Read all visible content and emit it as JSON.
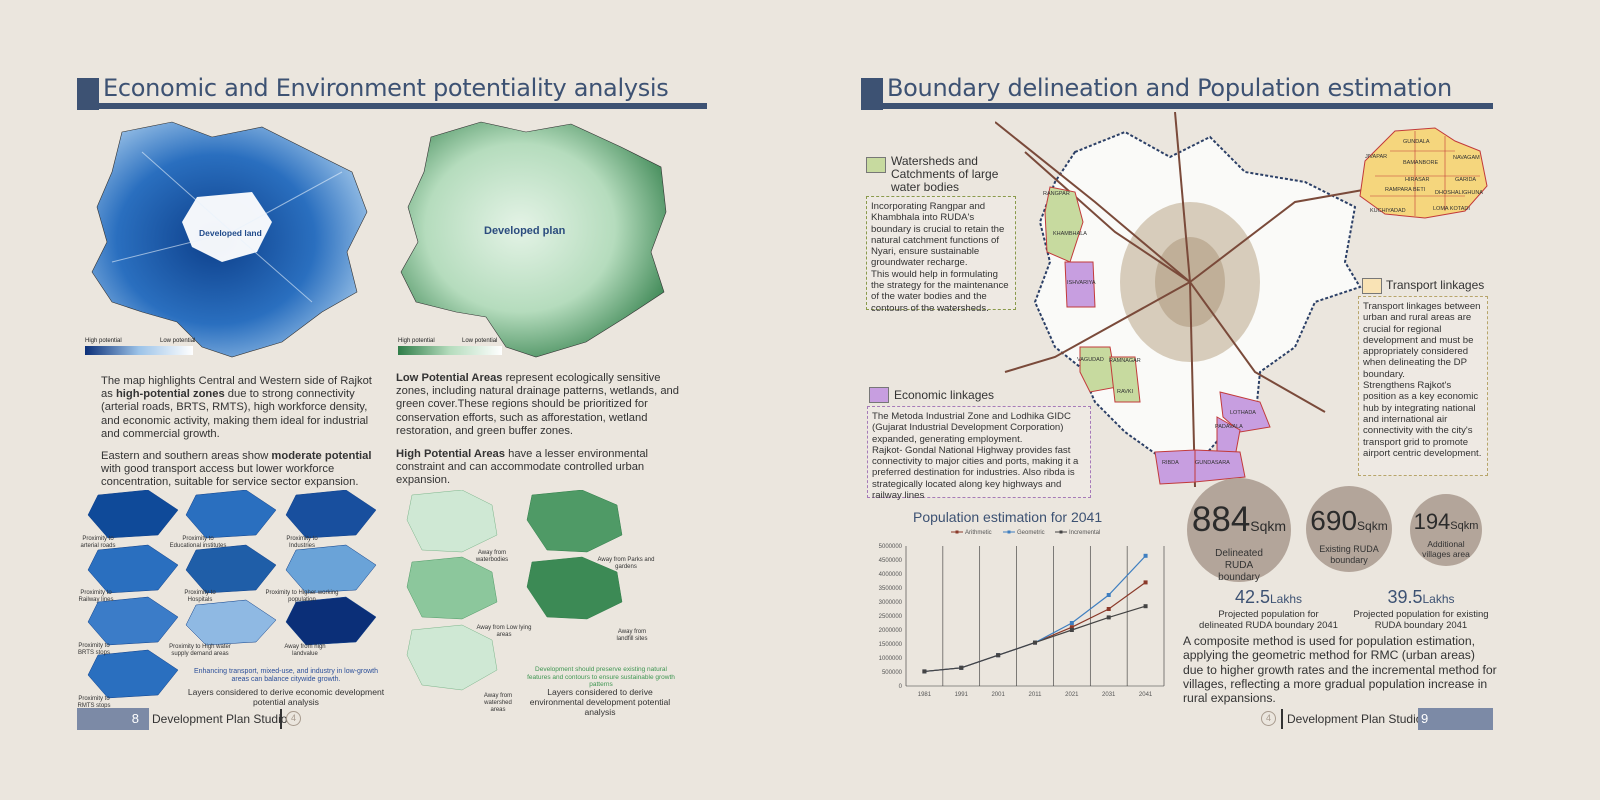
{
  "left_page": {
    "title": "Economic and Environment potentiality analysis",
    "map1_label": "Developed land",
    "map1_legend": {
      "high": "High potential",
      "low": "Low potential"
    },
    "map2_label": "Developed plan",
    "map2_legend": {
      "high": "High potential",
      "low": "Low potential"
    },
    "para1_pre": "The map highlights Central and Western side of  Rajkot as ",
    "para1_bold": "high-potential zones",
    "para1_post": " due to strong connectivity (arterial roads, BRTS, RMTS), high workforce density, and economic activity, making them ideal for industrial and commercial growth.",
    "para2_pre": "Eastern and southern areas show ",
    "para2_bold": "moderate potential",
    "para2_post": " with good transport access but lower workforce concentration, suitable for service sector expansion.",
    "para3_bold": "Low Potential Areas",
    "para3_post": " represent ecologically sensitive zones, including natural drainage patterns, wetlands, and green cover.These regions should be prioritized for conservation efforts, such as afforestation, wetland restoration, and green buffer zones.",
    "para4_bold": "High Potential Areas",
    "para4_post": " have a lesser environmental constraint and can accommodate controlled urban expansion.",
    "econ_layers": [
      "Proximity to arterial roads",
      "Proximity to Educational institutes",
      "Proximity to Industries",
      "Proximity to Railway lines",
      "Proximity to Hospitals",
      "Proximity to Higher working population",
      "Proximity to BRTS stops",
      "Proximity to High water supply demand areas",
      "Away from high landvalue",
      "Proximity to RMTS stops"
    ],
    "econ_note": "Enhancing transport, mixed-use, and industry in low-growth areas can balance citywide growth.",
    "econ_caption": "Layers considered to derive economic development potential analysis",
    "env_layers": [
      "Away from waterbodies",
      "Away from Parks and gardens",
      "Away from Low lying areas",
      "Away from landfill sites",
      "Away from watershed areas"
    ],
    "env_note": "Development should preserve existing natural features and contours to ensure sustainable growth patterns",
    "env_caption": "Layers considered to derive environmental development potential analysis",
    "page_number": "8",
    "footer": "Development Plan Studio",
    "logo": "4"
  },
  "right_page": {
    "title": "Boundary delineation and Population estimation",
    "watershed_head": "Watersheds and Catchments of large water bodies",
    "watershed_text": "Incorporating Rangpar and Khambhala into RUDA's boundary is crucial to retain the natural catchment functions of Nyari, ensure sustainable groundwater recharge.\nThis would help in formulating the strategy for the maintenance of the water bodies and the contours of the watersheds.",
    "economic_head": "Economic linkages",
    "economic_text": "The Metoda Industrial Zone and Lodhika GIDC (Gujarat Industrial Development Corporation) expanded, generating employment.\nRajkot- Gondal National Highway provides fast connectivity to major cities and ports, making it a preferred destination for industries. Also ribda is strategically located along key highways and railway lines",
    "transport_head": "Transport linkages",
    "transport_text": "Transport linkages between urban and rural areas are crucial for regional development and must be appropriately considered when delineating the DP boundary.\nStrengthens Rajkot's position as a key economic hub by integrating national and international air connectivity with the city's transport grid to promote airport centric development.",
    "villages_map": [
      "GUNDALA",
      "JIVAPAR",
      "BAMANBORE",
      "NAVAGAM",
      "HIRASAR",
      "GARIDA",
      "RAMPARA BETI",
      "DHOSHALIGHUNA",
      "KUCHIYADAD",
      "LOMA KOTADI"
    ],
    "region_labels": [
      "RANGPAR",
      "KHAMBHALA",
      "ISHVARIYA",
      "VAGUDAD",
      "RAMNAGAR",
      "RAVKI",
      "LOTHADA",
      "PADAVALA",
      "RIBDA",
      "GUNDASARA"
    ],
    "stats": [
      {
        "value": "884",
        "unit": "Sqkm",
        "label": "Delineated RUDA boundary"
      },
      {
        "value": "690",
        "unit": "Sqkm",
        "label": "Existing RUDA boundary"
      },
      {
        "value": "194",
        "unit": "Sqkm",
        "label": "Additional villages area"
      }
    ],
    "projections": [
      {
        "value": "42.5",
        "unit": "Lakhs",
        "label": "Projected population for delineated RUDA boundary 2041"
      },
      {
        "value": "39.5",
        "unit": "Lakhs",
        "label": "Projected population for existing RUDA boundary 2041"
      }
    ],
    "method_text": "A composite method is used for population estimation, applying the geometric method for RMC (urban areas) due to higher growth rates and the incremental method for villages, reflecting a more gradual population increase in rural expansions.",
    "page_number": "9",
    "footer": "Development Plan Studio",
    "logo": "4"
  },
  "chart_data": {
    "type": "line",
    "title": "Population estimation for 2041",
    "x": [
      "1981",
      "1991",
      "2001",
      "2011",
      "2021",
      "2031",
      "2041"
    ],
    "ylim": [
      0,
      5000000
    ],
    "yticks": [
      "0",
      "500000",
      "1000000",
      "1500000",
      "2000000",
      "2500000",
      "3000000",
      "3500000",
      "4000000",
      "4500000",
      "5000000"
    ],
    "series": [
      {
        "name": "Arithmetic",
        "color": "#8b3a2a",
        "values": [
          520000,
          650000,
          1100000,
          1550000,
          2100000,
          2750000,
          3700000
        ]
      },
      {
        "name": "Geometric",
        "color": "#3f7fc0",
        "values": [
          520000,
          650000,
          1100000,
          1550000,
          2250000,
          3250000,
          4650000
        ]
      },
      {
        "name": "Incremental",
        "color": "#444444",
        "values": [
          520000,
          650000,
          1100000,
          1550000,
          2000000,
          2450000,
          2850000
        ]
      }
    ]
  },
  "colors": {
    "accent": "#3d5273",
    "footer": "#7c8aa6",
    "econ_blue": "#1f5ea8",
    "env_green": "#4a9a60",
    "circle": "#b3a59a"
  }
}
